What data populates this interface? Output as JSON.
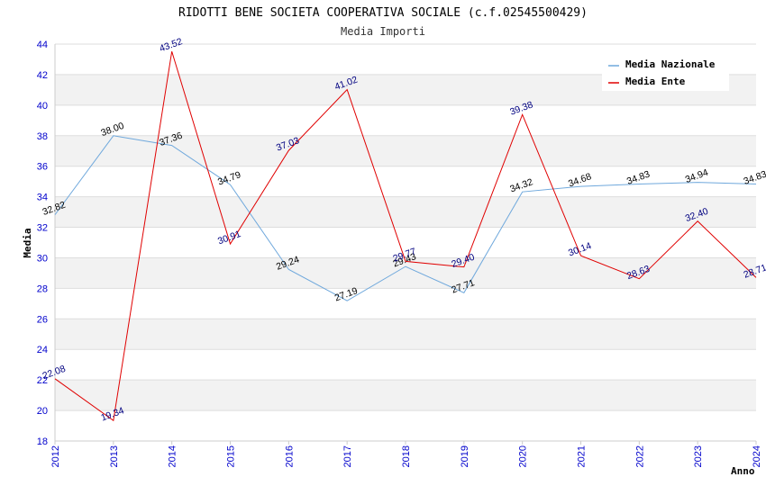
{
  "chart_data": {
    "type": "line",
    "title": "RIDOTTI BENE SOCIETA COOPERATIVA SOCIALE (c.f.02545500429)",
    "subtitle": "Media Importi",
    "xlabel": "Anno",
    "ylabel": "Media",
    "categories": [
      "2012",
      "2013",
      "2014",
      "2015",
      "2016",
      "2017",
      "2018",
      "2019",
      "2020",
      "2021",
      "2022",
      "2023",
      "2024"
    ],
    "ylim": [
      18,
      44
    ],
    "yticks": [
      "18",
      "20",
      "22",
      "24",
      "26",
      "28",
      "30",
      "32",
      "34",
      "36",
      "38",
      "40",
      "42",
      "44"
    ],
    "grid": true,
    "legend_position": "top-right",
    "series": [
      {
        "name": "Media Nazionale",
        "color": "#6fa8dc",
        "values": [
          32.82,
          38.0,
          37.36,
          34.79,
          29.24,
          27.19,
          29.43,
          27.71,
          34.32,
          34.68,
          34.83,
          34.94,
          34.83
        ],
        "labels": [
          "32.82",
          "38.00",
          "37.36",
          "34.79",
          "29.24",
          "27.19",
          "29.43",
          "27.71",
          "34.32",
          "34.68",
          "34.83",
          "34.94",
          "34.83"
        ]
      },
      {
        "name": "Media Ente",
        "color": "#e00000",
        "values": [
          22.08,
          19.34,
          43.52,
          30.91,
          37.03,
          41.02,
          29.77,
          29.4,
          39.38,
          30.14,
          28.63,
          32.4,
          28.71
        ],
        "labels": [
          "22.08",
          "19.34",
          "43.52",
          "30.91",
          "37.03",
          "41.02",
          "29.77",
          "29.40",
          "39.38",
          "30.14",
          "28.63",
          "32.40",
          "28.71"
        ]
      }
    ]
  }
}
